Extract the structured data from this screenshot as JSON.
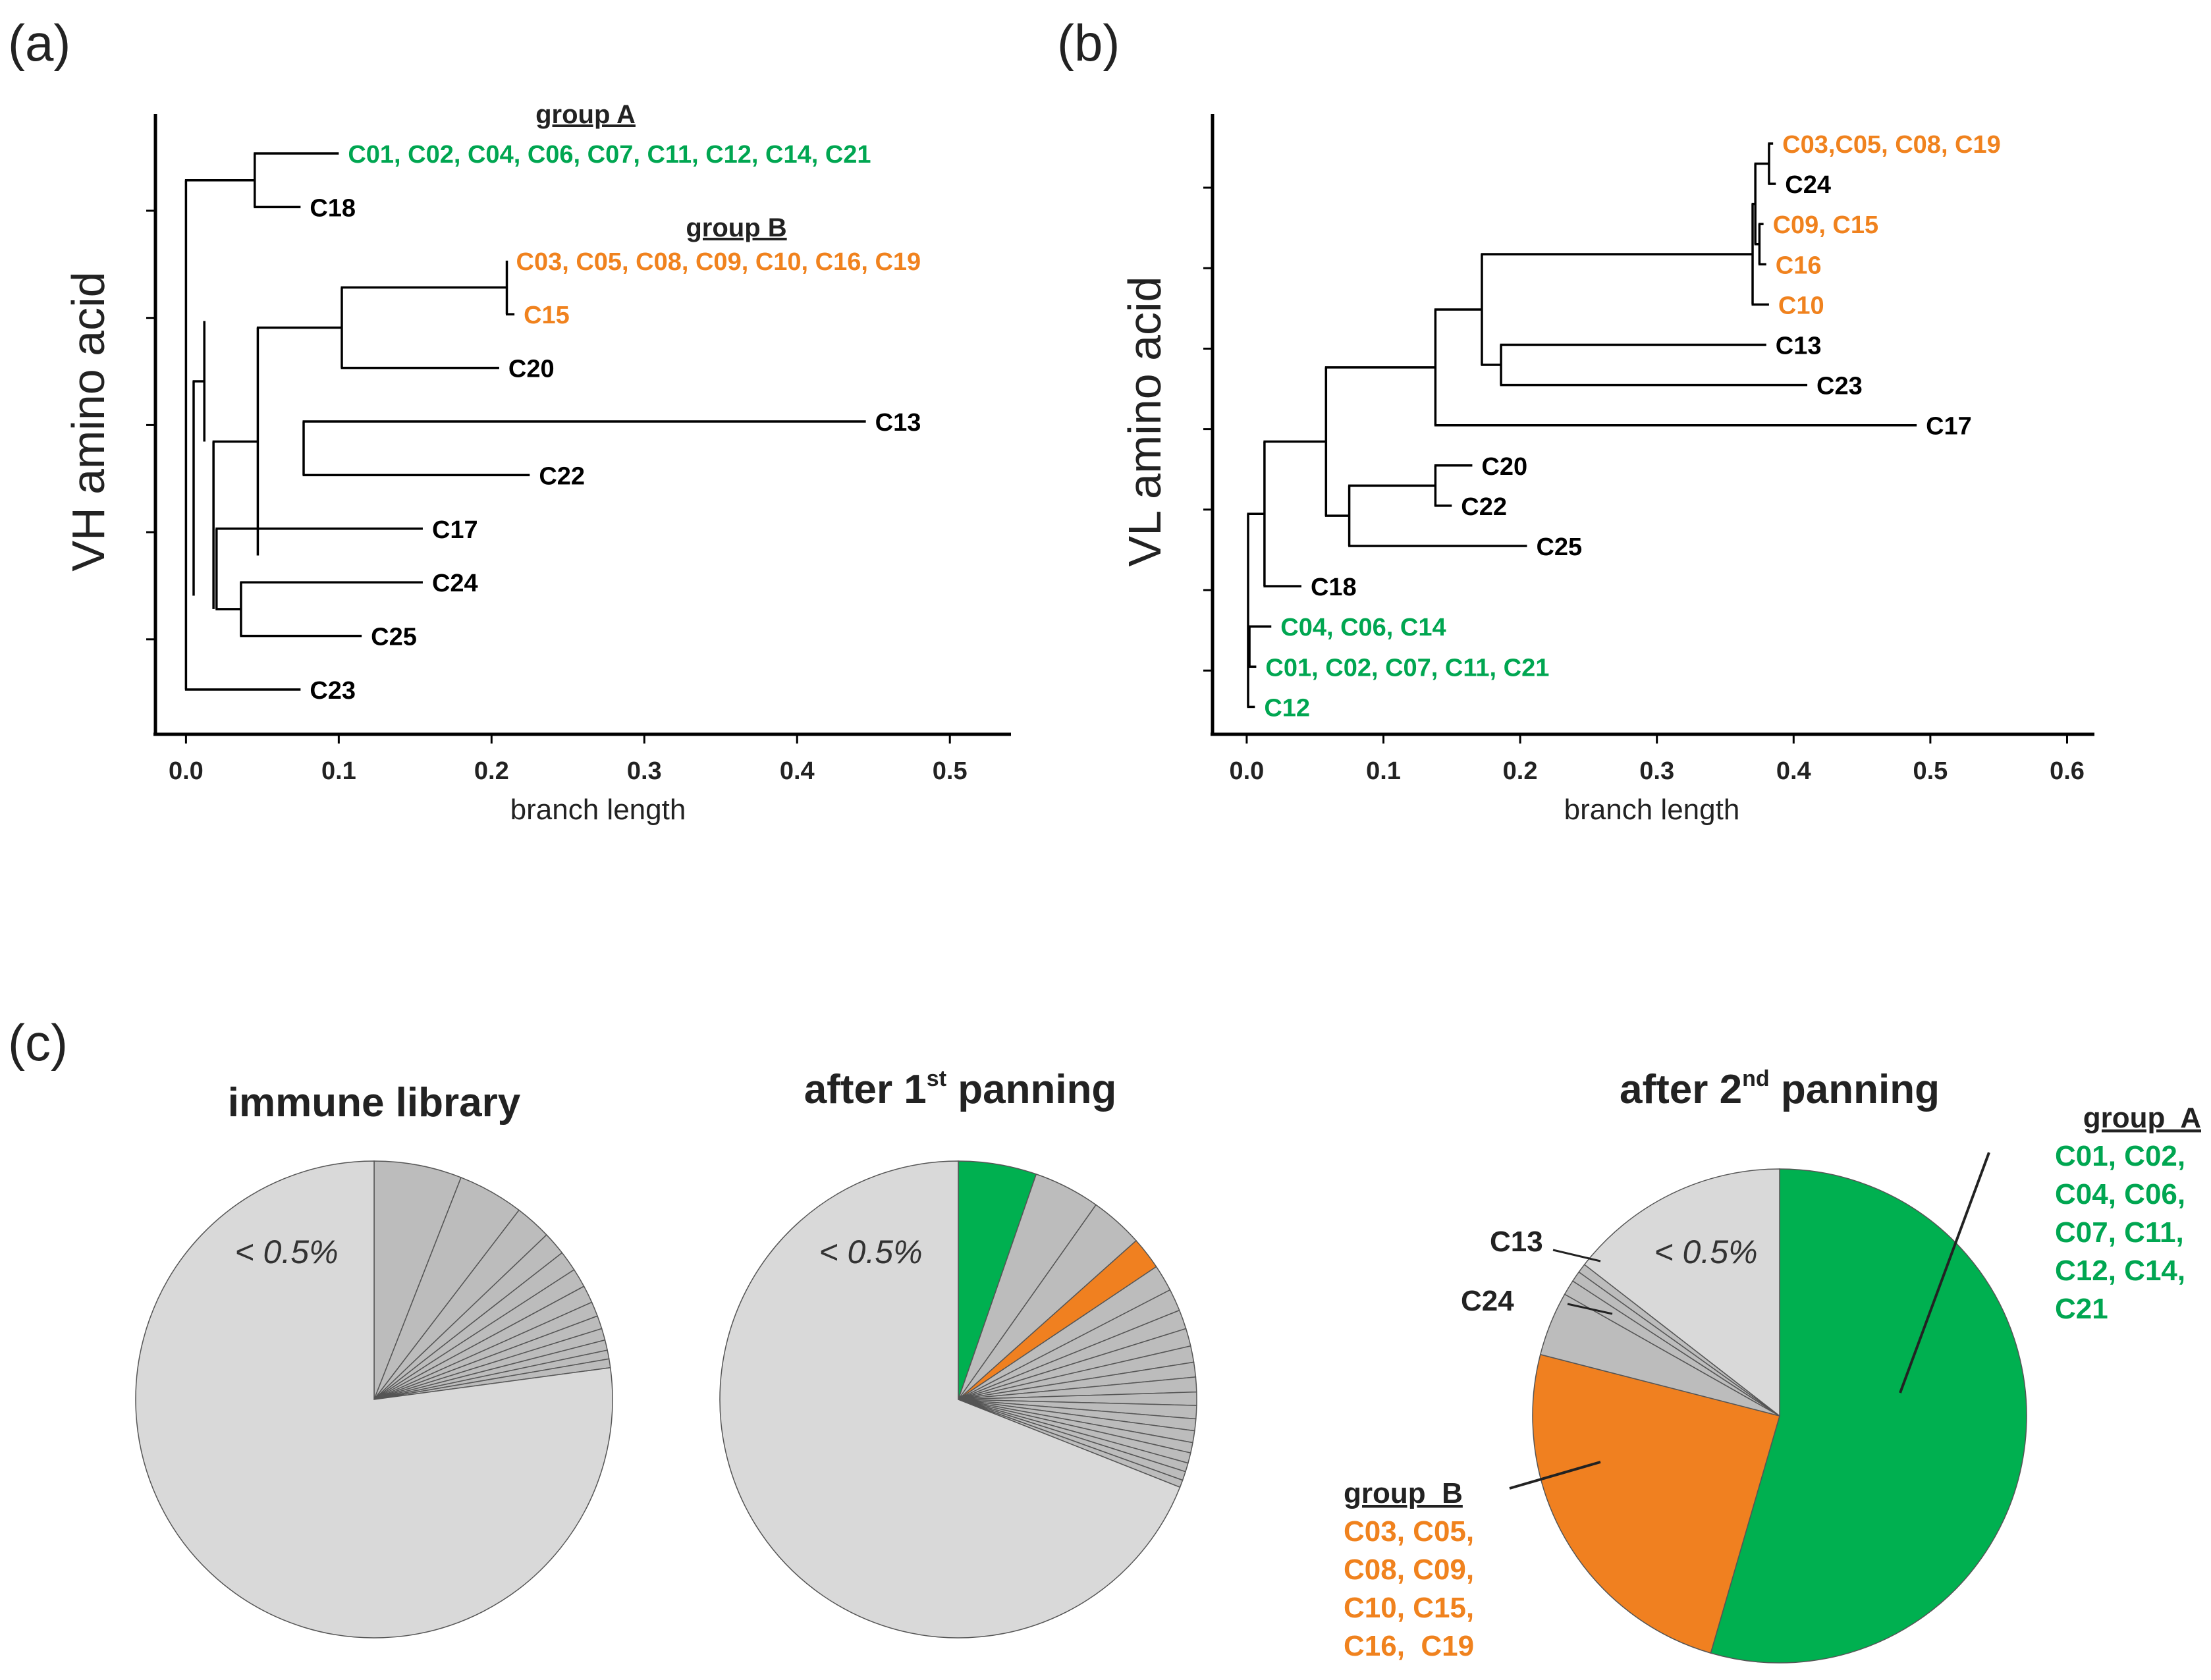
{
  "panel_labels": {
    "a": "(a)",
    "b": "(b)",
    "c": "(c)"
  },
  "chart_data": [
    {
      "type": "dendrogram",
      "panel": "(a)",
      "ylabel": "VH amino acid",
      "xlabel": "branch length",
      "xlim": [
        -0.02,
        0.54
      ],
      "xticks": [
        0.0,
        0.1,
        0.2,
        0.3,
        0.4,
        0.5
      ],
      "xtick_labels": [
        "0.0",
        "0.1",
        "0.2",
        "0.3",
        "0.4",
        "0.5"
      ],
      "n_rows": 11,
      "colors": {
        "black": "#000000",
        "green": "#00a651",
        "orange": "#f0821e"
      },
      "group_titles": [
        {
          "text": "group A",
          "near_row": 0
        },
        {
          "text": "group B",
          "near_row": 2
        }
      ],
      "leaves": [
        {
          "label": "C01, C02, C04, C06, C07, C11, C12, C14, C21",
          "x": 0.1,
          "row": 0,
          "color": "green"
        },
        {
          "label": "C18",
          "x": 0.075,
          "row": 1,
          "color": "black"
        },
        {
          "label": "C03, C05, C08, C09, C10, C16, C19",
          "x": 0.21,
          "row": 2,
          "color": "orange"
        },
        {
          "label": "C15",
          "x": 0.215,
          "row": 3,
          "color": "orange"
        },
        {
          "label": "C20",
          "x": 0.205,
          "row": 4,
          "color": "black"
        },
        {
          "label": "C13",
          "x": 0.445,
          "row": 5,
          "color": "black"
        },
        {
          "label": "C22",
          "x": 0.225,
          "row": 6,
          "color": "black"
        },
        {
          "label": "C17",
          "x": 0.155,
          "row": 7,
          "color": "black"
        },
        {
          "label": "C24",
          "x": 0.155,
          "row": 8,
          "color": "black"
        },
        {
          "label": "C25",
          "x": 0.115,
          "row": 9,
          "color": "black"
        },
        {
          "label": "C23",
          "x": 0.075,
          "row": 10,
          "color": "black"
        }
      ],
      "nodes": [
        {
          "x": 0.0,
          "r0": 0.5,
          "r1": 10
        },
        {
          "x": 0.045,
          "r0": 0,
          "r1": 1
        },
        {
          "x": 0.005,
          "r0": 4.25,
          "r1": 8.25
        },
        {
          "x": 0.012,
          "r0": 3.125,
          "r1": 5.375
        },
        {
          "x": 0.047,
          "r0": 3.25,
          "r1": 7.5
        },
        {
          "x": 0.102,
          "r0": 2.5,
          "r1": 4
        },
        {
          "x": 0.21,
          "r0": 2,
          "r1": 3
        },
        {
          "x": 0.077,
          "r0": 5,
          "r1": 6
        },
        {
          "x": 0.018,
          "r0": 5.375,
          "r1": 8.5
        },
        {
          "x": 0.02,
          "r0": 7,
          "r1": 8.5
        },
        {
          "x": 0.036,
          "r0": 8,
          "r1": 9
        }
      ]
    },
    {
      "type": "dendrogram",
      "panel": "(b)",
      "ylabel": "VL amino acid",
      "xlabel": "branch length",
      "xlim": [
        -0.025,
        0.62
      ],
      "xticks": [
        0.0,
        0.1,
        0.2,
        0.3,
        0.4,
        0.5,
        0.6
      ],
      "xtick_labels": [
        "0.0",
        "0.1",
        "0.2",
        "0.3",
        "0.4",
        "0.5",
        "0.6"
      ],
      "n_rows": 15,
      "colors": {
        "black": "#000000",
        "green": "#00a651",
        "orange": "#f0821e"
      },
      "leaves": [
        {
          "label": "C03,C05, C08, C19",
          "x": 0.385,
          "row": 0,
          "color": "orange"
        },
        {
          "label": "C24",
          "x": 0.387,
          "row": 1,
          "color": "black"
        },
        {
          "label": "C09, C15",
          "x": 0.378,
          "row": 2,
          "color": "orange"
        },
        {
          "label": "C16",
          "x": 0.38,
          "row": 3,
          "color": "orange"
        },
        {
          "label": "C10",
          "x": 0.382,
          "row": 4,
          "color": "orange"
        },
        {
          "label": "C13",
          "x": 0.38,
          "row": 5,
          "color": "black"
        },
        {
          "label": "C23",
          "x": 0.41,
          "row": 6,
          "color": "black"
        },
        {
          "label": "C17",
          "x": 0.49,
          "row": 7,
          "color": "black"
        },
        {
          "label": "C20",
          "x": 0.165,
          "row": 8,
          "color": "black"
        },
        {
          "label": "C22",
          "x": 0.15,
          "row": 9,
          "color": "black"
        },
        {
          "label": "C25",
          "x": 0.205,
          "row": 10,
          "color": "black"
        },
        {
          "label": "C18",
          "x": 0.04,
          "row": 11,
          "color": "black"
        },
        {
          "label": "C04, C06, C14",
          "x": 0.018,
          "row": 12,
          "color": "green"
        },
        {
          "label": "C01, C02, C07, C11, C21",
          "x": 0.007,
          "row": 13,
          "color": "green"
        },
        {
          "label": "C12",
          "x": 0.006,
          "row": 14,
          "color": "green"
        }
      ],
      "nodes": [
        {
          "x": 0.382,
          "r0": 0,
          "r1": 1
        },
        {
          "x": 0.375,
          "r0": 2,
          "r1": 3
        },
        {
          "x": 0.372,
          "r0": 0.5,
          "r1": 2.5
        },
        {
          "x": 0.37,
          "r0": 1.5,
          "r1": 4
        },
        {
          "x": 0.186,
          "r0": 5,
          "r1": 6
        },
        {
          "x": 0.172,
          "r0": 2.75,
          "r1": 5.5
        },
        {
          "x": 0.138,
          "r0": 4.125,
          "r1": 7
        },
        {
          "x": 0.138,
          "r0": 8,
          "r1": 9
        },
        {
          "x": 0.075,
          "r0": 8.5,
          "r1": 10
        },
        {
          "x": 0.058,
          "r0": 5.5625,
          "r1": 9.25
        },
        {
          "x": 0.013,
          "r0": 7.40625,
          "r1": 11
        },
        {
          "x": 0.002,
          "r0": 12,
          "r1": 13
        },
        {
          "x": 0.001,
          "r0": 9.203,
          "r1": 14
        }
      ]
    },
    {
      "type": "pie",
      "title": "immune library",
      "note": "< 0.5%",
      "slices": [
        {
          "value": 6.0,
          "color": "gray"
        },
        {
          "value": 4.5,
          "color": "gray"
        },
        {
          "value": 2.5,
          "color": "gray"
        },
        {
          "value": 1.6,
          "color": "gray"
        },
        {
          "value": 1.4,
          "color": "gray"
        },
        {
          "value": 1.3,
          "color": "gray"
        },
        {
          "value": 1.2,
          "color": "gray"
        },
        {
          "value": 1.0,
          "color": "gray"
        },
        {
          "value": 0.9,
          "color": "gray"
        },
        {
          "value": 0.8,
          "color": "gray"
        },
        {
          "value": 0.7,
          "color": "gray"
        },
        {
          "value": 0.6,
          "color": "gray"
        },
        {
          "value": 0.6,
          "color": "gray"
        },
        {
          "value": 77.9,
          "color": "light"
        }
      ]
    },
    {
      "type": "pie",
      "title": "after 1",
      "title_superscript": "st",
      "title_suffix": " panning",
      "note": "< 0.5%",
      "slices": [
        {
          "value": 5.3,
          "color": "green"
        },
        {
          "value": 4.5,
          "color": "gray"
        },
        {
          "value": 3.6,
          "color": "gray"
        },
        {
          "value": 2.2,
          "color": "orange"
        },
        {
          "value": 1.8,
          "color": "gray"
        },
        {
          "value": 1.5,
          "color": "gray"
        },
        {
          "value": 1.3,
          "color": "gray"
        },
        {
          "value": 1.2,
          "color": "gray"
        },
        {
          "value": 1.1,
          "color": "gray"
        },
        {
          "value": 1.0,
          "color": "gray"
        },
        {
          "value": 1.0,
          "color": "gray"
        },
        {
          "value": 0.9,
          "color": "gray"
        },
        {
          "value": 0.9,
          "color": "gray"
        },
        {
          "value": 0.8,
          "color": "gray"
        },
        {
          "value": 0.8,
          "color": "gray"
        },
        {
          "value": 0.7,
          "color": "gray"
        },
        {
          "value": 0.7,
          "color": "gray"
        },
        {
          "value": 0.6,
          "color": "gray"
        },
        {
          "value": 0.6,
          "color": "gray"
        },
        {
          "value": 0.5,
          "color": "gray"
        },
        {
          "value": 69.0,
          "color": "light"
        }
      ]
    },
    {
      "type": "pie",
      "title": "after 2",
      "title_superscript": "nd",
      "title_suffix": " panning",
      "note": "< 0.5%",
      "slices": [
        {
          "value": 54.5,
          "color": "green",
          "label": "group A"
        },
        {
          "value": 24.5,
          "color": "orange",
          "label": "group B"
        },
        {
          "value": 4.2,
          "color": "gray",
          "label": "C24"
        },
        {
          "value": 1.0,
          "color": "gray"
        },
        {
          "value": 0.7,
          "color": "gray"
        },
        {
          "value": 0.6,
          "color": "gray",
          "label": "C13"
        },
        {
          "value": 14.5,
          "color": "light"
        }
      ],
      "callouts": {
        "group_a_title": "group  A",
        "group_a_lines": [
          "C01, C02,",
          "C04, C06,",
          "C07, C11,",
          "C12, C14,",
          "C21"
        ],
        "group_b_title": "group  B",
        "group_b_lines": [
          "C03, C05,",
          "C08, C09,",
          "C10, C15,",
          "C16,  C19"
        ],
        "c13": "C13",
        "c24": "C24"
      }
    }
  ],
  "pie_colors": {
    "light": "#d9d9d9",
    "gray": "#bcbcbc",
    "green": "#00b050",
    "orange": "#f08020",
    "edge": "#555555"
  },
  "text_colors": {
    "green": "#00a651",
    "orange": "#f0821e",
    "dark": "#222222"
  }
}
